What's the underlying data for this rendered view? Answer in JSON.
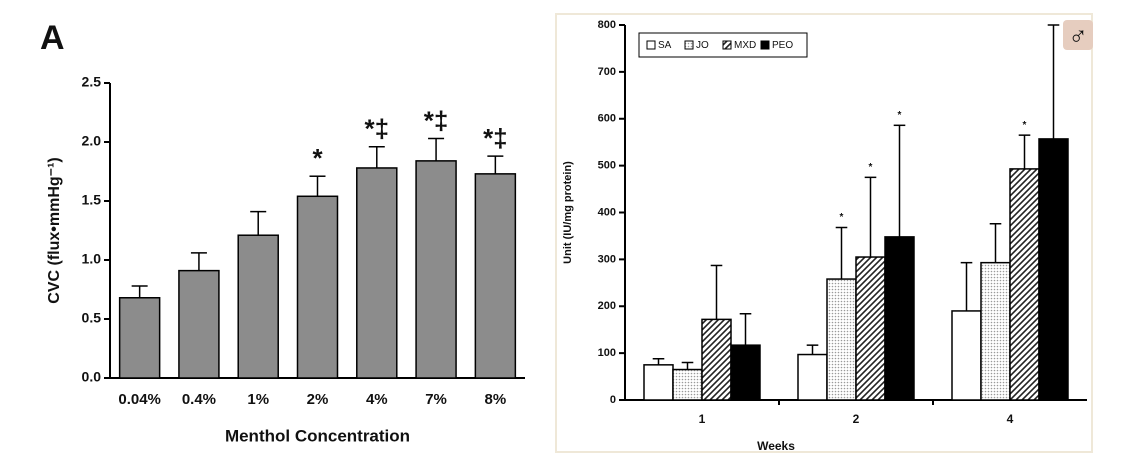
{
  "chart_data": [
    {
      "type": "bar",
      "panel_label": "A",
      "xlabel": "Menthol Concentration",
      "ylabel": "CVC (flux•mmHg⁻¹)",
      "categories": [
        "0.04%",
        "0.4%",
        "1%",
        "2%",
        "4%",
        "7%",
        "8%"
      ],
      "values": [
        0.68,
        0.91,
        1.21,
        1.54,
        1.78,
        1.84,
        1.73
      ],
      "errors": [
        0.1,
        0.15,
        0.2,
        0.17,
        0.18,
        0.19,
        0.15
      ],
      "markers": [
        null,
        null,
        null,
        "*",
        "*‡",
        "*‡",
        "*‡"
      ],
      "color": "#8c8c8c",
      "ylim": [
        0,
        2.5
      ],
      "yticks": [
        {
          "value": 0,
          "label": "0.0"
        },
        0.5,
        {
          "value": 1,
          "label": "1.0"
        },
        1.5,
        {
          "value": 2,
          "label": "2.0"
        },
        2.5
      ]
    },
    {
      "type": "grouped_bar",
      "xlabel": "Weeks",
      "ylabel": "Unit (IU/mg protein)",
      "symbol": "♂",
      "categories": [
        "1",
        "2",
        "4"
      ],
      "series": [
        {
          "name": "SA",
          "color": "#ffffff",
          "values": [
            75,
            97,
            190
          ],
          "errors": [
            13,
            20,
            103
          ],
          "markers": [
            null,
            null,
            null
          ]
        },
        {
          "name": "JO",
          "color": "#9a9a9a",
          "pattern": "dots",
          "values": [
            65,
            258,
            293
          ],
          "errors": [
            15,
            110,
            83
          ],
          "markers": [
            null,
            "*",
            null
          ]
        },
        {
          "name": "MXD",
          "color": "#222222",
          "pattern": "hatch",
          "values": [
            172,
            305,
            493
          ],
          "errors": [
            115,
            170,
            72
          ],
          "markers": [
            null,
            "*",
            "*"
          ]
        },
        {
          "name": "PEO",
          "color": "#000000",
          "values": [
            117,
            348,
            557
          ],
          "errors": [
            67,
            238,
            243
          ],
          "markers": [
            null,
            "*",
            null
          ]
        }
      ],
      "legend": "upper-left",
      "ylim": [
        0,
        800
      ],
      "yticks": [
        0,
        100,
        200,
        300,
        400,
        500,
        600,
        700,
        800
      ]
    }
  ]
}
